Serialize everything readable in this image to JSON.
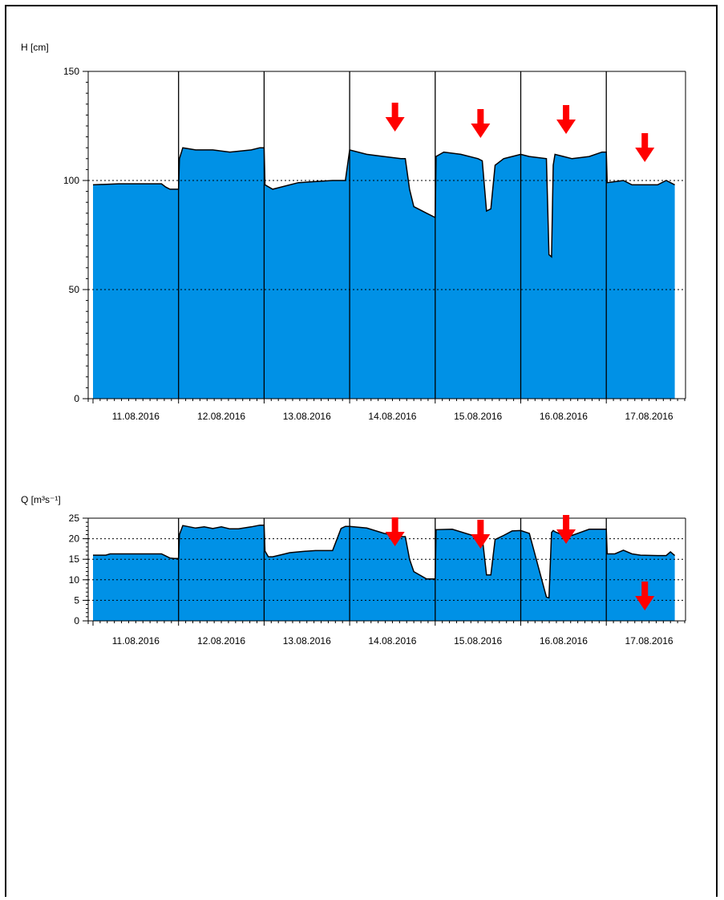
{
  "colors": {
    "fill": "#0091E6",
    "arrow": "#FF0000",
    "line": "#000000",
    "grid": "#000000"
  },
  "chart_data": [
    {
      "type": "area",
      "ylabel": "H [cm]",
      "ylim": [
        0,
        150
      ],
      "yticks": [
        0,
        50,
        100,
        150
      ],
      "grid_lines": [
        50,
        100
      ],
      "xlim": [
        0,
        7
      ],
      "day_labels": [
        "11.08.2016",
        "12.08.2016",
        "13.08.2016",
        "14.08.2016",
        "15.08.2016",
        "16.08.2016",
        "17.08.2016"
      ],
      "x": [
        0,
        0.3,
        0.55,
        0.8,
        0.85,
        0.9,
        0.95,
        1.0,
        1.01,
        1.05,
        1.2,
        1.4,
        1.6,
        1.85,
        1.95,
        2.0,
        2.01,
        2.1,
        2.4,
        2.8,
        2.9,
        2.95,
        3.0,
        3.2,
        3.4,
        3.6,
        3.65,
        3.7,
        3.75,
        3.9,
        4.0,
        4.01,
        4.1,
        4.3,
        4.5,
        4.55,
        4.6,
        4.65,
        4.7,
        4.8,
        4.9,
        5.0,
        5.1,
        5.3,
        5.33,
        5.36,
        5.38,
        5.4,
        5.5,
        5.6,
        5.8,
        5.95,
        6.0,
        6.01,
        6.2,
        6.3,
        6.4,
        6.6,
        6.7,
        6.75,
        6.8
      ],
      "values": [
        98,
        98.5,
        98.5,
        98.5,
        97,
        96,
        96,
        96,
        110,
        115,
        114,
        114,
        113,
        114,
        115,
        115,
        98,
        96,
        99,
        100,
        100,
        100,
        114,
        112,
        111,
        110,
        110,
        96,
        88,
        85,
        83,
        111,
        113,
        112,
        110,
        109,
        86,
        87,
        107,
        110,
        111,
        112,
        111,
        110,
        66,
        65,
        107,
        112,
        111,
        110,
        111,
        113,
        113,
        99,
        100,
        98,
        98,
        98,
        100,
        99,
        98
      ]
    },
    {
      "type": "area",
      "ylabel": "Q [m³s⁻¹]",
      "ylim": [
        0,
        25
      ],
      "yticks": [
        0,
        5,
        10,
        15,
        20,
        25
      ],
      "grid_lines": [
        5,
        10,
        15,
        20
      ],
      "xlim": [
        0,
        7
      ],
      "day_labels": [
        "11.08.2016",
        "12.08.2016",
        "13.08.2016",
        "14.08.2016",
        "15.08.2016",
        "16.08.2016",
        "17.08.2016"
      ],
      "x": [
        0,
        0.15,
        0.2,
        0.8,
        0.85,
        0.9,
        0.95,
        1.0,
        1.01,
        1.05,
        1.2,
        1.3,
        1.4,
        1.5,
        1.6,
        1.7,
        1.85,
        1.95,
        2.0,
        2.01,
        2.05,
        2.1,
        2.2,
        2.3,
        2.45,
        2.6,
        2.8,
        2.9,
        2.95,
        3.0,
        3.2,
        3.4,
        3.6,
        3.65,
        3.7,
        3.75,
        3.9,
        4.0,
        4.01,
        4.2,
        4.5,
        4.55,
        4.6,
        4.65,
        4.7,
        4.8,
        4.9,
        5.0,
        5.1,
        5.3,
        5.33,
        5.36,
        5.38,
        5.4,
        5.5,
        5.6,
        5.8,
        5.95,
        6.0,
        6.01,
        6.1,
        6.2,
        6.3,
        6.4,
        6.6,
        6.7,
        6.75,
        6.8
      ],
      "values": [
        16,
        16,
        16.3,
        16.3,
        15.8,
        15.3,
        15.2,
        15.2,
        21,
        23.2,
        22.6,
        22.9,
        22.5,
        22.9,
        22.4,
        22.4,
        22.9,
        23.3,
        23.3,
        17,
        15.6,
        15.6,
        16.1,
        16.6,
        16.9,
        17.1,
        17.1,
        22.5,
        23,
        23,
        22.6,
        21.3,
        20.5,
        20.5,
        15,
        12,
        10.2,
        10.2,
        22.2,
        22.3,
        20.4,
        20.4,
        11.2,
        11.2,
        19.8,
        20.8,
        21.9,
        22,
        21.3,
        5.8,
        5.6,
        21.5,
        22,
        21.7,
        20.8,
        20.8,
        22.3,
        22.3,
        22.3,
        16.3,
        16.3,
        17.2,
        16.3,
        16,
        15.9,
        15.9,
        16.8,
        15.9
      ]
    }
  ]
}
